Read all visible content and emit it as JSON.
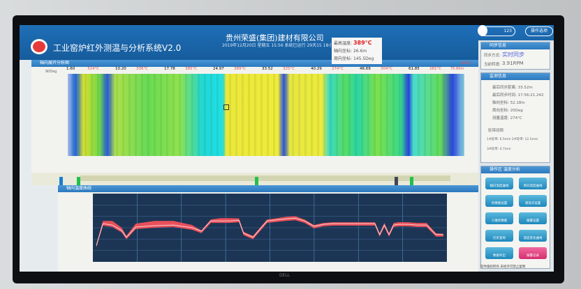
{
  "header": {
    "app_title": "工业窑炉红外测温与分析系统V2.0",
    "company": "贵州荣盛(集团)建材有限公司",
    "datetime": "2019年12月20日 星期五 15:56 系统已运行 29天15 18小时",
    "user_count": "123",
    "op_button": "操作选项"
  },
  "readout": {
    "max_temp_label": "最高温度:",
    "max_temp": "389°C",
    "axial_label": "轴向坐标:",
    "axial": "26.6m",
    "circ_label": "周向坐标:",
    "circ": "145.5Deg"
  },
  "thermal": {
    "panel_title": "轴向展开分析图",
    "y_label": "90Deg",
    "ruler": [
      {
        "pos": "1.60",
        "t": "324°C"
      },
      {
        "pos": "10.20",
        "t": "336°C"
      },
      {
        "pos": "17.78",
        "t": "385°C"
      },
      {
        "pos": "24.97",
        "t": "389°C"
      },
      {
        "pos": "33.52",
        "t": "325°C"
      },
      {
        "pos": "40.29",
        "t": "274°C"
      },
      {
        "pos": "46.69",
        "t": "304°C"
      },
      {
        "pos": "61.85",
        "t": "281°C"
      }
    ],
    "end": "75.60m",
    "scale_max": "600°C"
  },
  "chart": {
    "panel_title": "轴向温度曲线"
  },
  "chart_data": {
    "type": "area",
    "x_unit": "m",
    "x": [
      1.6,
      3,
      5,
      7,
      8,
      10,
      14,
      18,
      22,
      24,
      26,
      28,
      30,
      32,
      33,
      35,
      38,
      42,
      44,
      46,
      48,
      50,
      52,
      54,
      58,
      61,
      62,
      63,
      64,
      65,
      66,
      68,
      70,
      72,
      74,
      75.6
    ],
    "series": [
      {
        "values": [
          120,
          280,
          270,
          230,
          180,
          255,
          265,
          270,
          250,
          225,
          300,
          300,
          300,
          305,
          210,
          180,
          300,
          315,
          320,
          300,
          260,
          275,
          280,
          280,
          280,
          280,
          200,
          270,
          200,
          270,
          275,
          275,
          270,
          270,
          200,
          200
        ]
      },
      {
        "values": [
          130,
          300,
          300,
          250,
          190,
          280,
          300,
          300,
          270,
          230,
          310,
          320,
          320,
          318,
          220,
          190,
          310,
          330,
          335,
          310,
          270,
          285,
          290,
          290,
          290,
          290,
          210,
          285,
          210,
          285,
          290,
          290,
          285,
          285,
          210,
          205
        ]
      }
    ],
    "ylim": [
      0,
      500
    ],
    "xlim": [
      1.6,
      75.6
    ],
    "grid": true
  },
  "sync": {
    "title": "同步信息",
    "mode_label": "同步方式:",
    "mode": "实时同步",
    "speed_label": "当前转速:",
    "speed": "3.91RPM"
  },
  "monitor": {
    "title": "监测信息",
    "rows": [
      "最后同步距离: 33.52m",
      "最后同步时间: 17:56:21.242",
      "轴向坐标: 52.18m",
      "周向坐标: 20Deg",
      "测量温度: 274°C"
    ],
    "gap_title": "轮带间隙",
    "gap1": "1#轮带: 6.5mm  2#轮带: 12.5mm",
    "gap2": "3#轮带: 4.7mm"
  },
  "ops": {
    "title": "操作区 温度分析",
    "buttons": [
      "轴向温度曲线",
      "周向温度曲线",
      "热像图设置",
      "测温点设置",
      "三维热像图",
      "报警设置",
      "历史查询",
      "温度变化曲线",
      "数据导出",
      "报警记录"
    ]
  },
  "status": "软件版权所有 未经许可禁止复制",
  "monitor_brand": "DELL",
  "colors": {
    "header": "#1f6fb8",
    "curve": "#e8505a",
    "chart_bg": "#1d3555",
    "alarm": "#d62d6e"
  }
}
